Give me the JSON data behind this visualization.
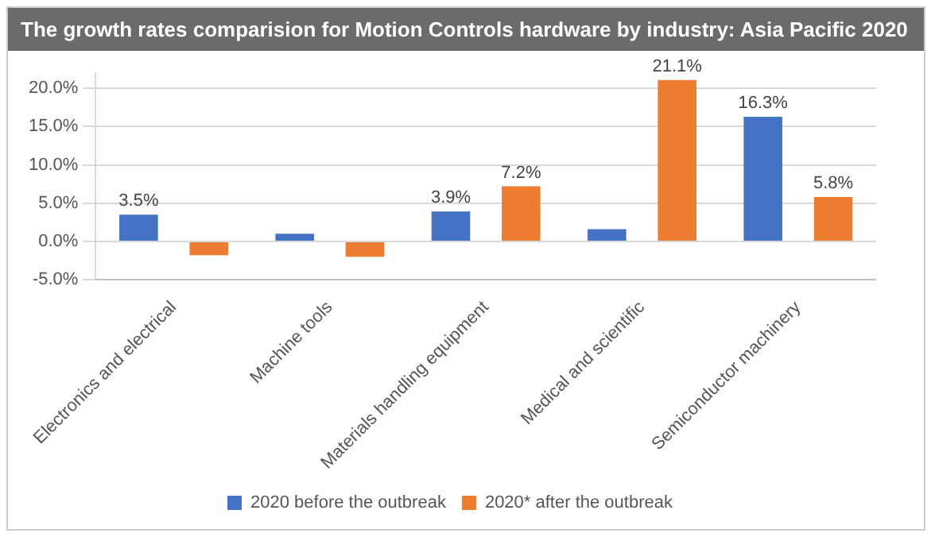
{
  "chart_data": {
    "type": "bar",
    "title": "The growth rates comparision for Motion Controls hardware by industry: Asia Pacific 2020",
    "categories": [
      "Electronics and electrical",
      "Machine tools",
      "Materials handling equipment",
      "Medical and scientific",
      "Semiconductor machinery"
    ],
    "series": [
      {
        "name": "2020 before the outbreak",
        "color": "#4472c4",
        "values": [
          3.5,
          1.0,
          3.9,
          1.6,
          16.3
        ],
        "value_labels": [
          "3.5%",
          null,
          "3.9%",
          null,
          "16.3%"
        ]
      },
      {
        "name": "2020* after the outbreak",
        "color": "#ed7d31",
        "values": [
          -1.8,
          -2.0,
          7.2,
          21.1,
          5.8
        ],
        "value_labels": [
          null,
          null,
          "7.2%",
          "21.1%",
          "5.8%"
        ]
      }
    ],
    "ylim": [
      -5,
      22
    ],
    "yticks": [
      {
        "value": -5,
        "label": "-5.0%"
      },
      {
        "value": 0,
        "label": "0.0%"
      },
      {
        "value": 5,
        "label": "5.0%"
      },
      {
        "value": 10,
        "label": "10.0%"
      },
      {
        "value": 15,
        "label": "15.0%"
      },
      {
        "value": 20,
        "label": "20.0%"
      }
    ],
    "grid": "y",
    "legend": "bottom"
  }
}
